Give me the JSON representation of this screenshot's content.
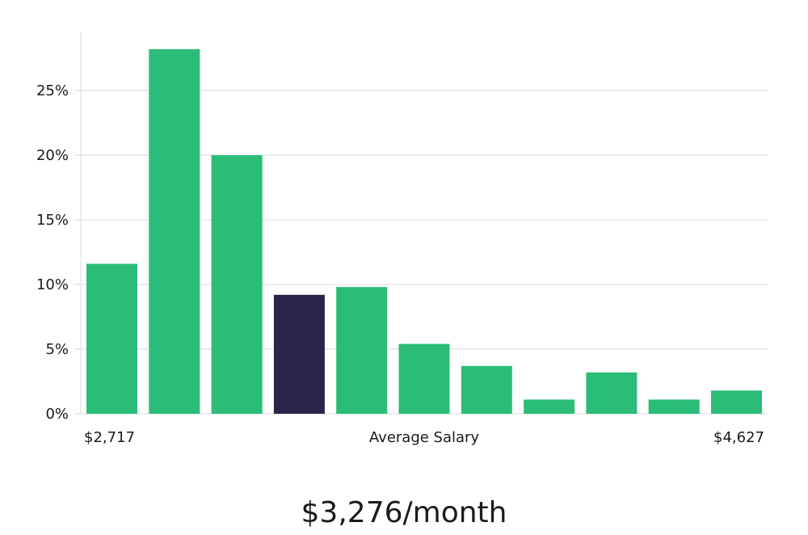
{
  "chart_data": {
    "type": "bar",
    "xlabel": "Average Salary",
    "x_min_label": "$2,717",
    "x_max_label": "$4,627",
    "ylim": [
      0,
      29.5
    ],
    "yticks": [
      "0%",
      "5%",
      "10%",
      "15%",
      "20%",
      "25%"
    ],
    "ytick_values": [
      0,
      5,
      10,
      15,
      20,
      25
    ],
    "values": [
      11.6,
      28.2,
      20.0,
      9.2,
      9.8,
      5.4,
      3.7,
      1.1,
      3.2,
      1.1,
      1.8
    ],
    "highlight_index": 3,
    "colors": {
      "bar": "#2bbd77",
      "highlight": "#29254a",
      "grid": "#d9d9d9"
    },
    "grid": true
  },
  "headline": "$3,276/month"
}
